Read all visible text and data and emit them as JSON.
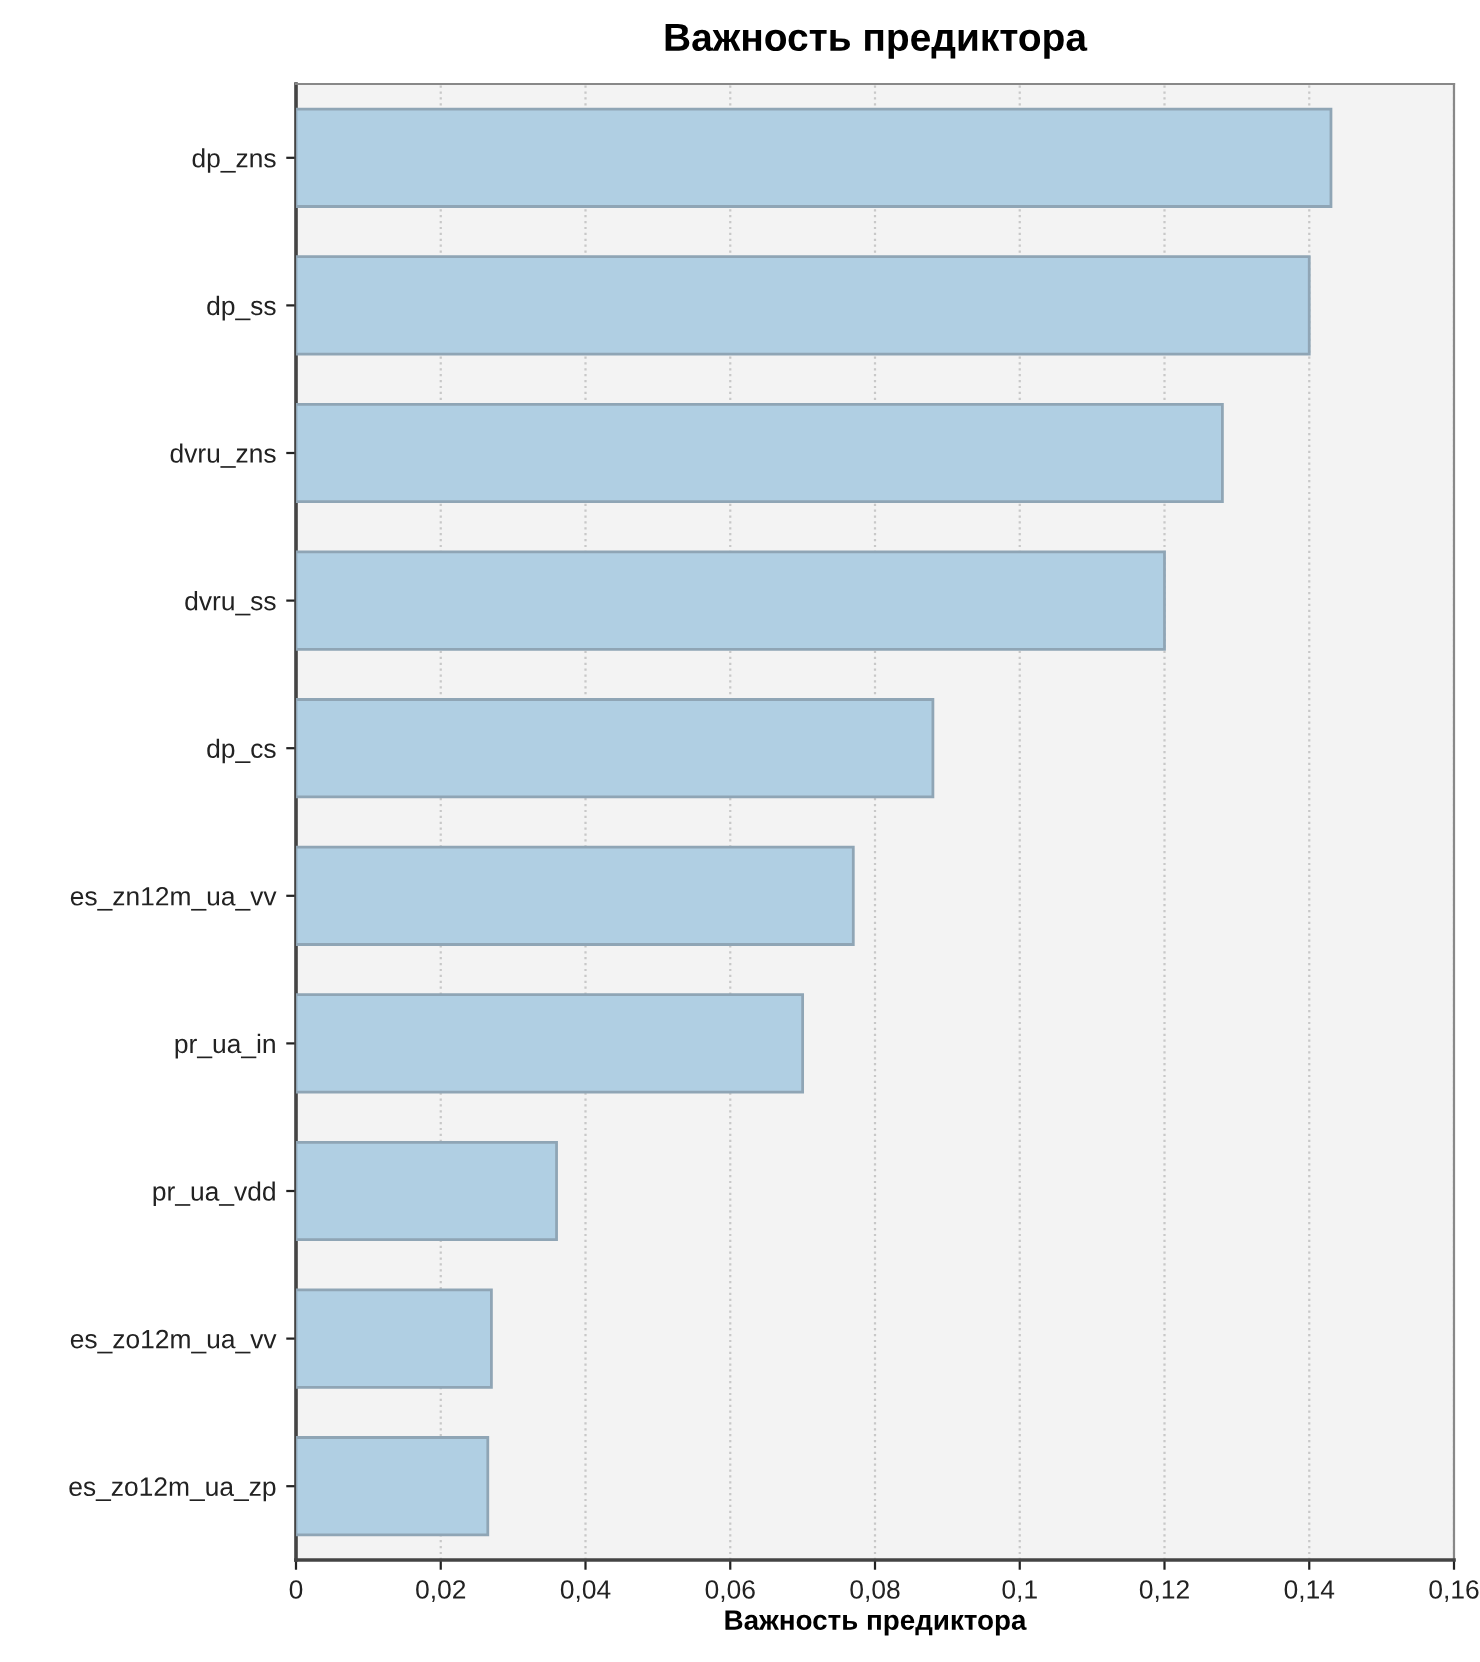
{
  "chart_data": {
    "type": "bar",
    "orientation": "horizontal",
    "title": "Важность предиктора",
    "xlabel": "Важность предиктора",
    "categories": [
      "dp_zns",
      "dp_ss",
      "dvru_zns",
      "dvru_ss",
      "dp_cs",
      "es_zn12m_ua_vv",
      "pr_ua_in",
      "pr_ua_vdd",
      "es_zo12m_ua_vv",
      "es_zo12m_ua_zp"
    ],
    "values": [
      0.143,
      0.14,
      0.128,
      0.12,
      0.088,
      0.077,
      0.07,
      0.036,
      0.027,
      0.0265
    ],
    "color": "#b0cfe3",
    "xlim": [
      0,
      0.16
    ],
    "xticks": [
      0,
      {
        "value": 0.02,
        "label": "0,02"
      },
      {
        "value": 0.04,
        "label": "0,04"
      },
      {
        "value": 0.06,
        "label": "0,06"
      },
      {
        "value": 0.08,
        "label": "0,08"
      },
      {
        "value": 0.1,
        "label": "0,1"
      },
      {
        "value": 0.12,
        "label": "0,12"
      },
      {
        "value": 0.14,
        "label": "0,14"
      },
      {
        "value": 0.16,
        "label": "0,16"
      }
    ],
    "grid": "x"
  }
}
